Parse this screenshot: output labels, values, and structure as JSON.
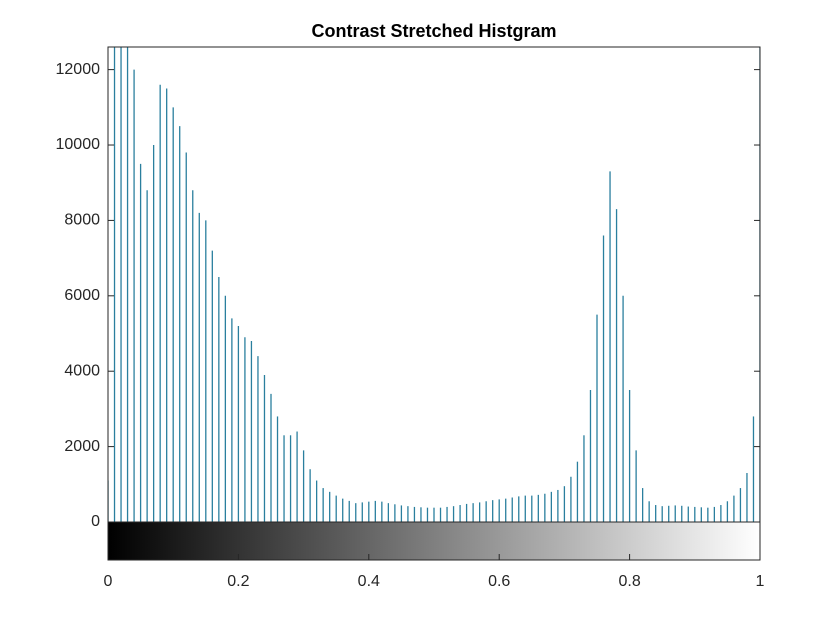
{
  "chart_data": {
    "type": "stem",
    "title": "Contrast Stretched Histgram",
    "color": "#2a7f9e",
    "x": [
      0,
      0.01,
      0.02,
      0.03,
      0.04,
      0.05,
      0.06,
      0.07,
      0.08,
      0.09,
      0.1,
      0.11,
      0.12,
      0.13,
      0.14,
      0.15,
      0.16,
      0.17,
      0.18,
      0.19,
      0.2,
      0.21,
      0.22,
      0.23,
      0.24,
      0.25,
      0.26,
      0.27,
      0.28,
      0.29,
      0.3,
      0.31,
      0.32,
      0.33,
      0.34,
      0.35,
      0.36,
      0.37,
      0.38,
      0.39,
      0.4,
      0.41,
      0.42,
      0.43,
      0.44,
      0.45,
      0.46,
      0.47,
      0.48,
      0.49,
      0.5,
      0.51,
      0.52,
      0.53,
      0.54,
      0.55,
      0.56,
      0.57,
      0.58,
      0.59,
      0.6,
      0.61,
      0.62,
      0.63,
      0.64,
      0.65,
      0.66,
      0.67,
      0.68,
      0.69,
      0.7,
      0.71,
      0.72,
      0.73,
      0.74,
      0.75,
      0.76,
      0.77,
      0.78,
      0.79,
      0.8,
      0.81,
      0.82,
      0.83,
      0.84,
      0.85,
      0.86,
      0.87,
      0.88,
      0.89,
      0.9,
      0.91,
      0.92,
      0.93,
      0.94,
      0.95,
      0.96,
      0.97,
      0.98,
      0.99,
      1
    ],
    "values": [
      1100,
      13000,
      14000,
      13500,
      12000,
      9500,
      8800,
      10000,
      11600,
      11500,
      11000,
      10500,
      9800,
      8800,
      8200,
      8000,
      7200,
      6500,
      6000,
      5400,
      5200,
      4900,
      4800,
      4400,
      3900,
      3400,
      2800,
      2300,
      2300,
      2400,
      1900,
      1400,
      1100,
      900,
      800,
      700,
      620,
      560,
      500,
      520,
      540,
      560,
      540,
      500,
      470,
      440,
      420,
      400,
      390,
      380,
      380,
      380,
      400,
      420,
      450,
      480,
      500,
      520,
      550,
      580,
      600,
      620,
      650,
      680,
      700,
      700,
      720,
      750,
      800,
      850,
      950,
      1200,
      1600,
      2300,
      3500,
      5500,
      7600,
      9300,
      8300,
      6000,
      3500,
      1900,
      900,
      550,
      450,
      420,
      430,
      440,
      430,
      410,
      400,
      390,
      380,
      400,
      450,
      550,
      700,
      900,
      1300,
      2800,
      12600
    ],
    "xlim": [
      0,
      1
    ],
    "xticks": [
      0,
      0.2,
      0.4,
      0.6,
      0.8,
      1
    ],
    "ylim": [
      0,
      12600
    ],
    "yticks": [
      0,
      2000,
      4000,
      6000,
      8000,
      10000,
      12000
    ]
  }
}
